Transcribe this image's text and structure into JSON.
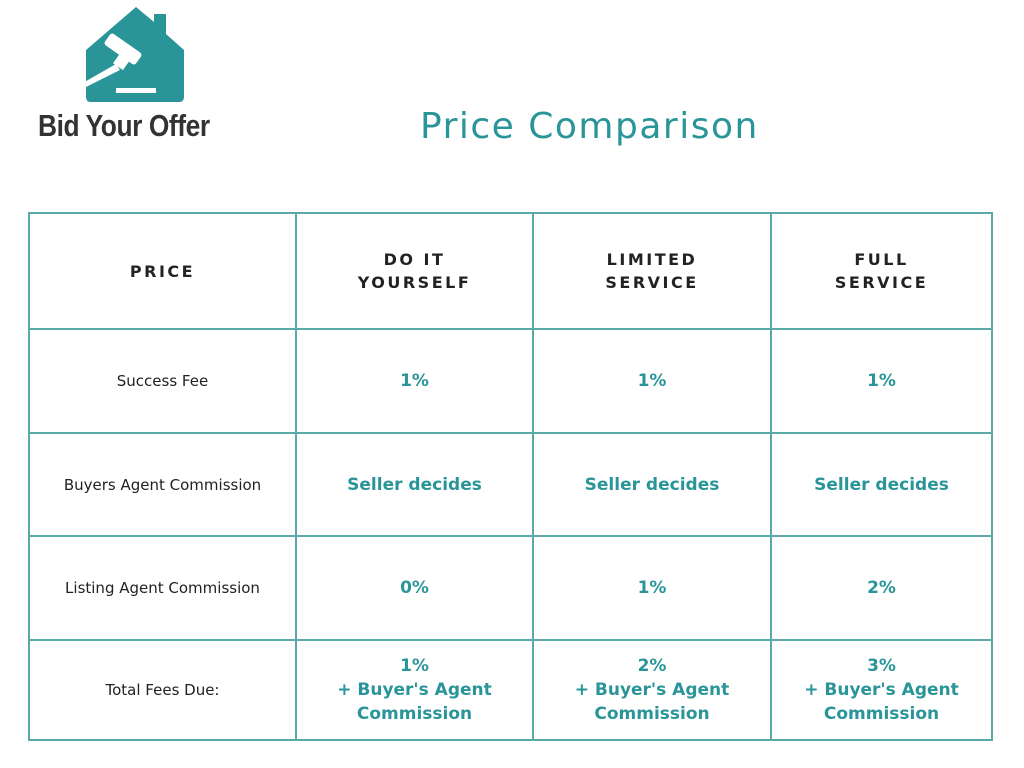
{
  "brand": {
    "name": "Bid Your Offer",
    "color": "#2a9598"
  },
  "title": "Price Comparison",
  "table": {
    "headers": [
      "PRICE",
      "DO IT YOURSELF",
      "LIMITED SERVICE",
      "FULL SERVICE"
    ],
    "header_lines": [
      [
        "PRICE"
      ],
      [
        "DO IT",
        "YOURSELF"
      ],
      [
        "LIMITED",
        "SERVICE"
      ],
      [
        "FULL",
        "SERVICE"
      ]
    ],
    "rows": [
      {
        "label": "Success Fee",
        "values": [
          "1%",
          "1%",
          "1%"
        ]
      },
      {
        "label": "Buyers Agent Commission",
        "values": [
          "Seller decides",
          "Seller decides",
          "Seller decides"
        ]
      },
      {
        "label": "Listing Agent Commission",
        "values": [
          "0%",
          "1%",
          "2%"
        ]
      },
      {
        "label": "Total Fees Due:",
        "values": [
          [
            "1%",
            "+ Buyer's Agent",
            "Commission"
          ],
          [
            "2%",
            "+ Buyer's Agent",
            "Commission"
          ],
          [
            "3%",
            "+ Buyer's Agent",
            "Commission"
          ]
        ]
      }
    ]
  }
}
